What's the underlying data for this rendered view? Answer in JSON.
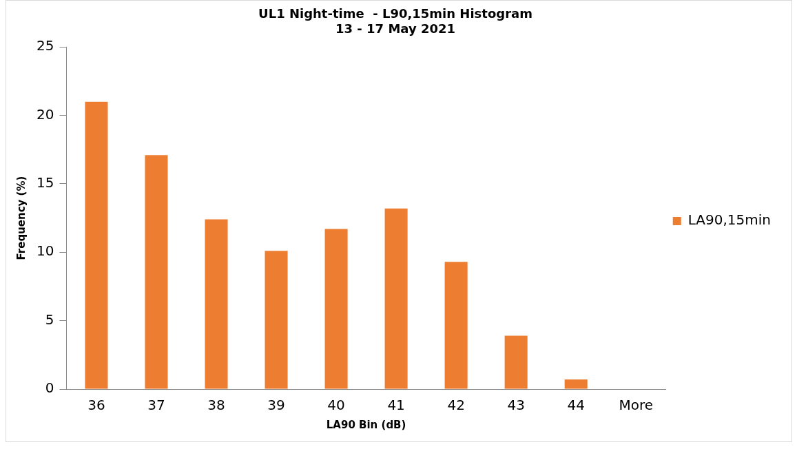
{
  "chart_data": {
    "type": "bar",
    "title": "UL1 Night-time  - L90,15min Histogram",
    "subtitle": "13 - 17 May 2021",
    "xlabel": "LA90 Bin (dB)",
    "ylabel": "Frequency (%)",
    "categories": [
      "36",
      "37",
      "38",
      "39",
      "40",
      "41",
      "42",
      "43",
      "44",
      "More"
    ],
    "series": [
      {
        "name": "LA90,15min",
        "color": "#ed7d31",
        "values": [
          21.0,
          17.1,
          12.4,
          10.1,
          11.7,
          13.2,
          9.3,
          3.9,
          0.7,
          0
        ]
      }
    ],
    "ylim": [
      0,
      25
    ],
    "yticks": [
      0,
      5,
      10,
      15,
      20,
      25
    ],
    "grid": false,
    "legend": "right"
  }
}
